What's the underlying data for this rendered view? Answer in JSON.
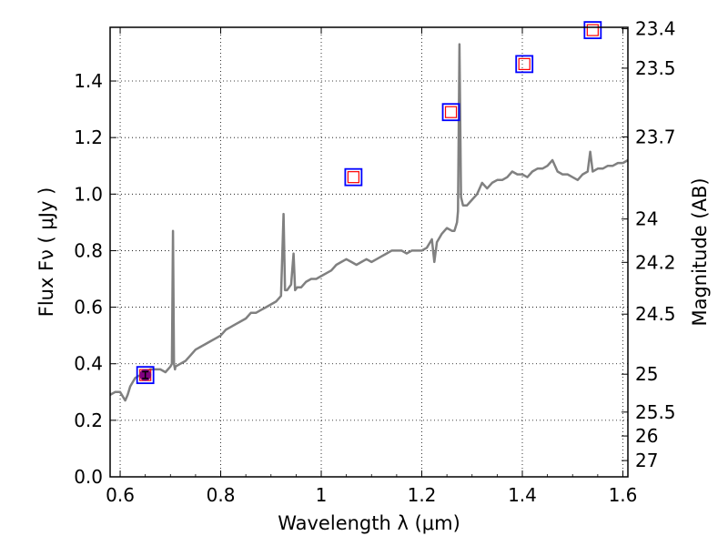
{
  "chart_data": {
    "type": "line",
    "title": "",
    "xlabel": "Wavelength  λ (μm)",
    "ylabel_left": "Flux  Fν  ( μJy )",
    "ylabel_right": "Magnitude (AB)",
    "xlim": [
      0.58,
      1.61
    ],
    "ylim": [
      0.0,
      1.59
    ],
    "x_ticks": [
      0.6,
      0.8,
      1.0,
      1.2,
      1.4,
      1.6
    ],
    "x_tick_labels": [
      "0.6",
      "0.8",
      "1",
      "1.2",
      "1.4",
      "1.6"
    ],
    "y_ticks": [
      0.0,
      0.2,
      0.4,
      0.6,
      0.8,
      1.0,
      1.2,
      1.4
    ],
    "y_tick_labels": [
      "0.0",
      "0.2",
      "0.4",
      "0.6",
      "0.8",
      "1.0",
      "1.2",
      "1.4"
    ],
    "mag_ticks": [
      "23.4",
      "23.5",
      "23.7",
      "24",
      "24.2",
      "24.5",
      "25",
      "25.5",
      "26",
      "27"
    ],
    "grid": true,
    "series": [
      {
        "name": "model spectrum",
        "style": "line",
        "color": "#808080",
        "x": [
          0.58,
          0.59,
          0.6,
          0.61,
          0.615,
          0.62,
          0.63,
          0.64,
          0.65,
          0.66,
          0.67,
          0.68,
          0.69,
          0.7,
          0.703,
          0.705,
          0.707,
          0.709,
          0.71,
          0.72,
          0.73,
          0.74,
          0.75,
          0.76,
          0.77,
          0.78,
          0.79,
          0.8,
          0.81,
          0.82,
          0.83,
          0.84,
          0.85,
          0.86,
          0.87,
          0.88,
          0.89,
          0.9,
          0.91,
          0.92,
          0.925,
          0.928,
          0.932,
          0.94,
          0.945,
          0.948,
          0.952,
          0.96,
          0.97,
          0.98,
          0.99,
          1.0,
          1.01,
          1.02,
          1.03,
          1.04,
          1.05,
          1.06,
          1.07,
          1.08,
          1.09,
          1.1,
          1.11,
          1.12,
          1.13,
          1.14,
          1.15,
          1.16,
          1.17,
          1.18,
          1.19,
          1.2,
          1.21,
          1.22,
          1.225,
          1.23,
          1.24,
          1.25,
          1.26,
          1.265,
          1.27,
          1.272,
          1.275,
          1.278,
          1.282,
          1.29,
          1.3,
          1.31,
          1.32,
          1.33,
          1.34,
          1.35,
          1.36,
          1.37,
          1.38,
          1.39,
          1.4,
          1.41,
          1.42,
          1.43,
          1.44,
          1.45,
          1.46,
          1.47,
          1.48,
          1.49,
          1.5,
          1.51,
          1.52,
          1.53,
          1.535,
          1.54,
          1.55,
          1.56,
          1.57,
          1.58,
          1.59,
          1.6,
          1.61
        ],
        "y": [
          0.29,
          0.3,
          0.3,
          0.27,
          0.29,
          0.32,
          0.35,
          0.36,
          0.37,
          0.38,
          0.38,
          0.38,
          0.37,
          0.39,
          0.4,
          0.87,
          0.4,
          0.38,
          0.39,
          0.4,
          0.41,
          0.43,
          0.45,
          0.46,
          0.47,
          0.48,
          0.49,
          0.5,
          0.52,
          0.53,
          0.54,
          0.55,
          0.56,
          0.58,
          0.58,
          0.59,
          0.6,
          0.61,
          0.62,
          0.64,
          0.93,
          0.66,
          0.66,
          0.68,
          0.79,
          0.66,
          0.67,
          0.67,
          0.69,
          0.7,
          0.7,
          0.71,
          0.72,
          0.73,
          0.75,
          0.76,
          0.77,
          0.76,
          0.75,
          0.76,
          0.77,
          0.76,
          0.77,
          0.78,
          0.79,
          0.8,
          0.8,
          0.8,
          0.79,
          0.8,
          0.8,
          0.8,
          0.81,
          0.84,
          0.76,
          0.83,
          0.86,
          0.88,
          0.87,
          0.87,
          0.9,
          0.94,
          1.53,
          0.99,
          0.96,
          0.96,
          0.98,
          1.0,
          1.04,
          1.02,
          1.04,
          1.05,
          1.05,
          1.06,
          1.08,
          1.07,
          1.07,
          1.06,
          1.08,
          1.09,
          1.09,
          1.1,
          1.12,
          1.08,
          1.07,
          1.07,
          1.06,
          1.05,
          1.07,
          1.08,
          1.15,
          1.08,
          1.09,
          1.09,
          1.1,
          1.1,
          1.11,
          1.11,
          1.12
        ]
      },
      {
        "name": "photometry (blue squares)",
        "style": "marker",
        "color": "#0000ff",
        "x": [
          0.65,
          1.064,
          1.258,
          1.404,
          1.54
        ],
        "y": [
          0.36,
          1.06,
          1.29,
          1.46,
          1.58
        ]
      },
      {
        "name": "model photometry (red squares)",
        "style": "marker",
        "color": "#ff0000",
        "x": [
          0.65,
          1.064,
          1.258,
          1.404,
          1.54
        ],
        "y": [
          0.36,
          1.06,
          1.29,
          1.46,
          1.58
        ]
      },
      {
        "name": "observed point",
        "style": "errorbar",
        "color": "#800080",
        "x": [
          0.65
        ],
        "y": [
          0.36
        ],
        "yerr": [
          0.012
        ]
      }
    ]
  }
}
